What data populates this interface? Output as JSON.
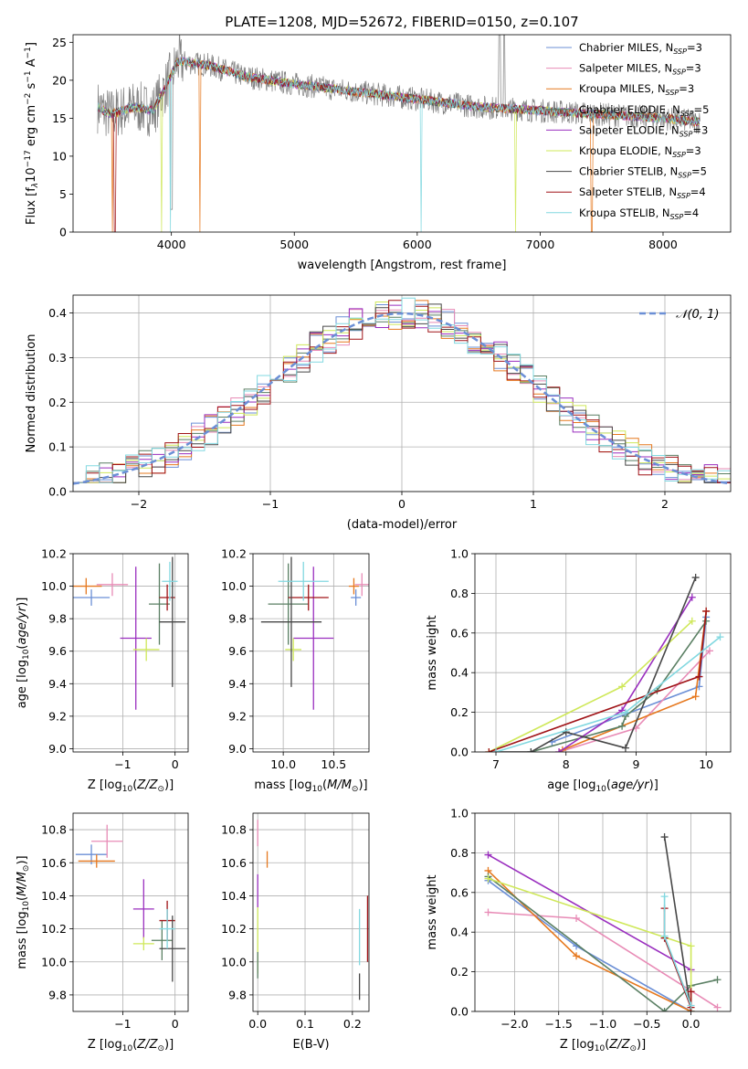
{
  "title": "PLATE=1208, MJD=52672, FIBERID=0150, z=0.107",
  "colors": {
    "Chabrier MILES": "#6b8fd6",
    "Salpeter MILES": "#e88bb6",
    "Kroupa MILES": "#e6781e",
    "Chabrier ELODIE": "#5a7f63",
    "Salpeter ELODIE": "#9a2fbf",
    "Kroupa ELODIE": "#cfe85a",
    "Chabrier STELIB": "#474747",
    "Salpeter STELIB": "#a01418",
    "Kroupa STELIB": "#82d8e0"
  },
  "chart_data": [
    {
      "id": "spectrum",
      "type": "line",
      "xlabel": "wavelength [Angstrom, rest frame]",
      "ylabel": "Flux [fλ10⁻¹⁷ erg cm⁻² s⁻¹ A⁻¹]",
      "xlim": [
        3200,
        8550
      ],
      "ylim": [
        0,
        26
      ],
      "xticks": [
        4000,
        5000,
        6000,
        7000,
        8000
      ],
      "yticks": [
        0,
        5,
        10,
        15,
        20,
        25
      ],
      "grid": false,
      "legend_position": "top-right",
      "legend": [
        "Chabrier MILES, N_SSP=3",
        "Salpeter MILES, N_SSP=3",
        "Kroupa MILES, N_SSP=3",
        "Chabrier ELODIE, N_SSP=5",
        "Salpeter ELODIE, N_SSP=3",
        "Kroupa ELODIE, N_SSP=3",
        "Chabrier STELIB, N_SSP=5",
        "Salpeter STELIB, N_SSP=4",
        "Kroupa STELIB, N_SSP=4"
      ],
      "data_envelope": {
        "x": [
          3400,
          3500,
          3700,
          3850,
          3950,
          4050,
          4300,
          4600,
          5000,
          5500,
          6000,
          6500,
          7000,
          7500,
          8000,
          8300
        ],
        "y": [
          16.5,
          15.5,
          16.5,
          16.0,
          19.0,
          22.5,
          22.0,
          20.5,
          19.5,
          18.5,
          17.5,
          16.5,
          16.0,
          15.5,
          15.0,
          14.5
        ]
      },
      "data_noise": 1.6,
      "model_dropouts": [
        {
          "model": "Kroupa MILES",
          "x": [
            3520,
            4230,
            7420
          ]
        },
        {
          "model": "Kroupa STELIB",
          "x": [
            6030,
            3990
          ]
        },
        {
          "model": "Kroupa ELODIE",
          "x": [
            3920,
            6800
          ]
        },
        {
          "model": "Salpeter STELIB",
          "x": [
            3540
          ]
        }
      ]
    },
    {
      "id": "residuals",
      "type": "histogram",
      "xlabel": "(data-model)/error",
      "ylabel": "Normed distribution",
      "xlim": [
        -2.5,
        2.5
      ],
      "ylim": [
        0,
        0.44
      ],
      "xticks": [
        -2,
        -1,
        0,
        1,
        2
      ],
      "yticks": [
        0.0,
        0.1,
        0.2,
        0.3,
        0.4
      ],
      "grid": true,
      "legend_position": "top-right",
      "reference_curve": {
        "name": "𝒩(0, 1)",
        "mean": 0,
        "sigma": 1,
        "color": "#6b8fd6",
        "dash": true
      },
      "bin_width": 0.1
    },
    {
      "id": "age_vs_Z",
      "type": "errorbar",
      "xlabel": "Z [log10(Z/Z⊙)]",
      "ylabel": "age  [log10(age/yr)]",
      "xlim": [
        -1.95,
        0.25
      ],
      "ylim": [
        8.98,
        10.2
      ],
      "xticks": [
        -1,
        0
      ],
      "yticks": [
        9.0,
        9.2,
        9.4,
        9.6,
        9.8,
        10.0,
        10.2
      ],
      "grid": true,
      "points": [
        {
          "model": "Chabrier MILES",
          "x": -1.6,
          "xerr": 0.35,
          "y": 9.93,
          "yerr": 0.05
        },
        {
          "model": "Kroupa MILES",
          "x": -1.7,
          "xerr": 0.3,
          "y": 10.0,
          "yerr": 0.05
        },
        {
          "model": "Salpeter MILES",
          "x": -1.2,
          "xerr": 0.3,
          "y": 10.01,
          "yerr": 0.07
        },
        {
          "model": "Salpeter ELODIE",
          "x": -0.75,
          "xerr": 0.3,
          "y": 9.68,
          "yerr": 0.44
        },
        {
          "model": "Kroupa ELODIE",
          "x": -0.55,
          "xerr": 0.25,
          "y": 9.61,
          "yerr": 0.07
        },
        {
          "model": "Chabrier ELODIE",
          "x": -0.3,
          "xerr": 0.2,
          "y": 9.89,
          "yerr": 0.25
        },
        {
          "model": "Salpeter STELIB",
          "x": -0.15,
          "xerr": 0.15,
          "y": 9.93,
          "yerr": 0.08
        },
        {
          "model": "Chabrier STELIB",
          "x": -0.05,
          "xerr": 0.25,
          "y": 9.78,
          "yerr": 0.4
        },
        {
          "model": "Kroupa STELIB",
          "x": -0.1,
          "xerr": 0.15,
          "y": 10.03,
          "yerr": 0.12
        }
      ]
    },
    {
      "id": "age_vs_mass",
      "type": "errorbar",
      "xlabel": "mass [log10(M/M⊙)]",
      "ylabel": "",
      "xlim": [
        9.7,
        10.85
      ],
      "ylim": [
        8.98,
        10.2
      ],
      "xticks": [
        10.0,
        10.5
      ],
      "yticks": [
        9.0,
        9.2,
        9.4,
        9.6,
        9.8,
        10.0,
        10.2
      ],
      "grid": true,
      "points": [
        {
          "model": "Chabrier MILES",
          "x": 10.72,
          "xerr": 0.05,
          "y": 9.93,
          "yerr": 0.05
        },
        {
          "model": "Kroupa MILES",
          "x": 10.7,
          "xerr": 0.05,
          "y": 10.0,
          "yerr": 0.05
        },
        {
          "model": "Salpeter MILES",
          "x": 10.78,
          "xerr": 0.07,
          "y": 10.01,
          "yerr": 0.07
        },
        {
          "model": "Salpeter ELODIE",
          "x": 10.3,
          "xerr": 0.2,
          "y": 9.68,
          "yerr": 0.44
        },
        {
          "model": "Kroupa ELODIE",
          "x": 10.1,
          "xerr": 0.08,
          "y": 9.61,
          "yerr": 0.07
        },
        {
          "model": "Chabrier ELODIE",
          "x": 10.05,
          "xerr": 0.2,
          "y": 9.89,
          "yerr": 0.25
        },
        {
          "model": "Salpeter STELIB",
          "x": 10.25,
          "xerr": 0.2,
          "y": 9.93,
          "yerr": 0.08
        },
        {
          "model": "Chabrier STELIB",
          "x": 10.08,
          "xerr": 0.3,
          "y": 9.78,
          "yerr": 0.4
        },
        {
          "model": "Kroupa STELIB",
          "x": 10.2,
          "xerr": 0.25,
          "y": 10.03,
          "yerr": 0.12
        }
      ]
    },
    {
      "id": "weight_vs_age",
      "type": "line",
      "xlabel": "age  [log10(age/yr)]",
      "ylabel": "mass weight",
      "xlim": [
        6.7,
        10.35
      ],
      "ylim": [
        0,
        1.0
      ],
      "xticks": [
        7,
        8,
        9,
        10
      ],
      "yticks": [
        0.0,
        0.2,
        0.4,
        0.6,
        0.8,
        1.0
      ],
      "grid": true,
      "series": [
        {
          "model": "Chabrier MILES",
          "x": [
            7.8,
            9.9,
            10.0
          ],
          "y": [
            0.05,
            0.33,
            0.68
          ]
        },
        {
          "model": "Salpeter MILES",
          "x": [
            7.9,
            9.0,
            10.05
          ],
          "y": [
            0.0,
            0.12,
            0.51
          ]
        },
        {
          "model": "Kroupa MILES",
          "x": [
            7.95,
            9.85,
            10.0
          ],
          "y": [
            0.01,
            0.28,
            0.71
          ]
        },
        {
          "model": "Chabrier ELODIE",
          "x": [
            7.5,
            8.8,
            8.85,
            9.3,
            10.0
          ],
          "y": [
            0.0,
            0.13,
            0.18,
            0.31,
            0.66
          ]
        },
        {
          "model": "Salpeter ELODIE",
          "x": [
            7.9,
            8.8,
            9.8
          ],
          "y": [
            0.0,
            0.21,
            0.78
          ]
        },
        {
          "model": "Kroupa ELODIE",
          "x": [
            6.9,
            8.8,
            9.8
          ],
          "y": [
            0.0,
            0.33,
            0.66
          ]
        },
        {
          "model": "Chabrier STELIB",
          "x": [
            7.0,
            7.5,
            8.0,
            8.85,
            9.85
          ],
          "y": [
            0.0,
            0.0,
            0.1,
            0.02,
            0.88
          ]
        },
        {
          "model": "Salpeter STELIB",
          "x": [
            6.9,
            9.9,
            10.0
          ],
          "y": [
            0.0,
            0.38,
            0.71
          ]
        },
        {
          "model": "Kroupa STELIB",
          "x": [
            7.0,
            8.85,
            10.2
          ],
          "y": [
            0.0,
            0.2,
            0.58
          ]
        }
      ]
    },
    {
      "id": "mass_vs_Z",
      "type": "errorbar",
      "xlabel": "Z [log10(Z/Z⊙)]",
      "ylabel": "mass [log10(M/M⊙)]",
      "xlim": [
        -1.95,
        0.25
      ],
      "ylim": [
        9.7,
        10.9
      ],
      "xticks": [
        -1,
        0
      ],
      "yticks": [
        9.8,
        10.0,
        10.2,
        10.4,
        10.6,
        10.8
      ],
      "grid": true,
      "points": [
        {
          "model": "Chabrier MILES",
          "x": -1.6,
          "xerr": 0.3,
          "y": 10.65,
          "yerr": 0.06
        },
        {
          "model": "Kroupa MILES",
          "x": -1.5,
          "xerr": 0.35,
          "y": 10.61,
          "yerr": 0.04
        },
        {
          "model": "Salpeter MILES",
          "x": -1.3,
          "xerr": 0.3,
          "y": 10.73,
          "yerr": 0.1
        },
        {
          "model": "Salpeter ELODIE",
          "x": -0.6,
          "xerr": 0.2,
          "y": 10.32,
          "yerr": 0.18
        },
        {
          "model": "Kroupa ELODIE",
          "x": -0.6,
          "xerr": 0.2,
          "y": 10.11,
          "yerr": 0.04
        },
        {
          "model": "Chabrier ELODIE",
          "x": -0.25,
          "xerr": 0.2,
          "y": 10.13,
          "yerr": 0.12
        },
        {
          "model": "Salpeter STELIB",
          "x": -0.15,
          "xerr": 0.15,
          "y": 10.25,
          "yerr": 0.12
        },
        {
          "model": "Chabrier STELIB",
          "x": -0.05,
          "xerr": 0.25,
          "y": 10.08,
          "yerr": 0.2
        },
        {
          "model": "Kroupa STELIB",
          "x": -0.15,
          "xerr": 0.15,
          "y": 10.2,
          "yerr": 0.12
        }
      ]
    },
    {
      "id": "mass_vs_ebv",
      "type": "errorbar",
      "xlabel": "E(B-V)",
      "ylabel": "",
      "xlim": [
        -0.01,
        0.235
      ],
      "ylim": [
        9.7,
        10.9
      ],
      "xticks": [
        0.0,
        0.1,
        0.2
      ],
      "yticks": [
        9.8,
        10.0,
        10.2,
        10.4,
        10.6,
        10.8
      ],
      "grid": true,
      "points": [
        {
          "model": "Salpeter MILES",
          "x": 0.0,
          "xerr": 0.0,
          "y": 10.78,
          "yerr": 0.08
        },
        {
          "model": "Kroupa MILES",
          "x": 0.02,
          "xerr": 0.0,
          "y": 10.62,
          "yerr": 0.05
        },
        {
          "model": "Salpeter ELODIE",
          "x": 0.0,
          "xerr": 0.0,
          "y": 10.43,
          "yerr": 0.1
        },
        {
          "model": "Kroupa ELODIE",
          "x": 0.0,
          "xerr": 0.0,
          "y": 10.13,
          "yerr": 0.2
        },
        {
          "model": "Chabrier ELODIE",
          "x": 0.0,
          "xerr": 0.0,
          "y": 9.98,
          "yerr": 0.08
        },
        {
          "model": "Kroupa STELIB",
          "x": 0.215,
          "xerr": 0.0,
          "y": 10.15,
          "yerr": 0.17
        },
        {
          "model": "Chabrier STELIB",
          "x": 0.215,
          "xerr": 0.0,
          "y": 9.85,
          "yerr": 0.08
        },
        {
          "model": "Salpeter STELIB",
          "x": 0.232,
          "xerr": 0.0,
          "y": 10.2,
          "yerr": 0.2
        }
      ]
    },
    {
      "id": "weight_vs_Z",
      "type": "line",
      "xlabel": "Z [log10(Z/Z⊙)]",
      "ylabel": "mass weight",
      "xlim": [
        -2.45,
        0.45
      ],
      "ylim": [
        0,
        1.0
      ],
      "xticks": [
        -2.0,
        -1.5,
        -1.0,
        -0.5,
        0.0
      ],
      "yticks": [
        0.0,
        0.2,
        0.4,
        0.6,
        0.8,
        1.0
      ],
      "grid": true,
      "series": [
        {
          "model": "Chabrier MILES",
          "x": [
            -2.3,
            -1.3,
            0.0
          ],
          "y": [
            0.66,
            0.33,
            0.0
          ]
        },
        {
          "model": "Salpeter MILES",
          "x": [
            -2.3,
            -1.3,
            0.3
          ],
          "y": [
            0.5,
            0.47,
            0.02
          ]
        },
        {
          "model": "Kroupa MILES",
          "x": [
            -2.3,
            -1.3,
            0.0
          ],
          "y": [
            0.71,
            0.28,
            0.0
          ]
        },
        {
          "model": "Chabrier ELODIE",
          "x": [
            -2.3,
            -0.3,
            0.0,
            0.3
          ],
          "y": [
            0.68,
            0.0,
            0.13,
            0.16
          ]
        },
        {
          "model": "Salpeter ELODIE",
          "x": [
            -2.3,
            0.0
          ],
          "y": [
            0.79,
            0.21
          ]
        },
        {
          "model": "Kroupa ELODIE",
          "x": [
            -2.3,
            0.0,
            0.0
          ],
          "y": [
            0.67,
            0.33,
            0.0
          ]
        },
        {
          "model": "Chabrier STELIB",
          "x": [
            -0.3,
            0.0
          ],
          "y": [
            0.88,
            0.0
          ]
        },
        {
          "model": "Salpeter STELIB",
          "x": [
            -0.3,
            -0.3,
            0.0,
            0.0
          ],
          "y": [
            0.52,
            0.37,
            0.02,
            0.1
          ]
        },
        {
          "model": "Kroupa STELIB",
          "x": [
            -0.3,
            -0.3,
            0.0
          ],
          "y": [
            0.58,
            0.38,
            0.03
          ]
        }
      ]
    }
  ]
}
